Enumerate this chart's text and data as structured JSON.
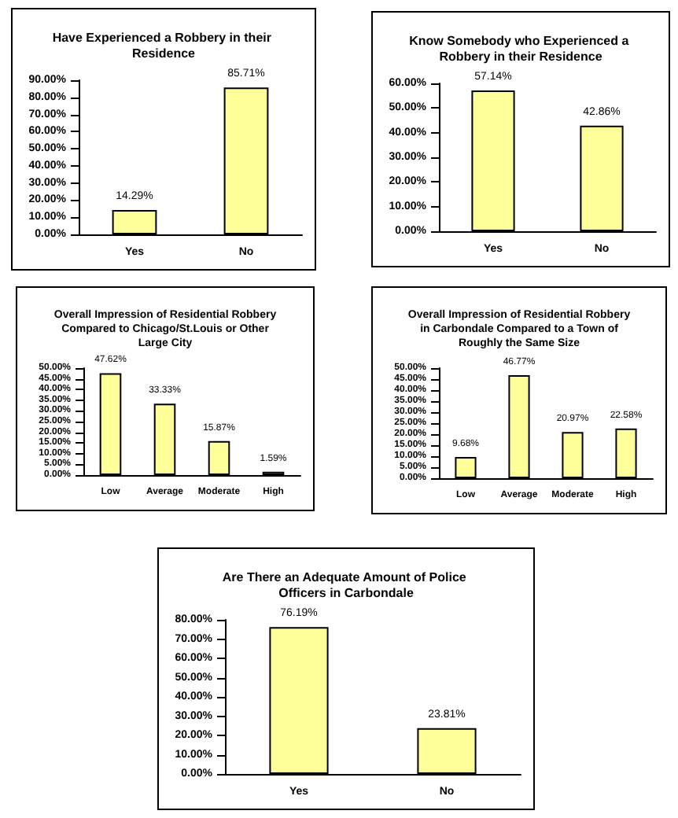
{
  "chart_data": [
    {
      "type": "bar",
      "title": "Have Experienced a Robbery in their Residence",
      "categories": [
        "Yes",
        "No"
      ],
      "values": [
        14.29,
        85.71
      ],
      "color": "#ffff99",
      "value_labels": [
        "14.29%",
        "85.71%"
      ],
      "ylim": [
        0,
        90
      ],
      "yticks": [
        {
          "value": 0,
          "label": "0.00%"
        },
        {
          "value": 10,
          "label": "10.00%"
        },
        {
          "value": 20,
          "label": "20.00%"
        },
        {
          "value": 30,
          "label": "30.00%"
        },
        {
          "value": 40,
          "label": "40.00%"
        },
        {
          "value": 50,
          "label": "50.00%"
        },
        {
          "value": 60,
          "label": "60.00%"
        },
        {
          "value": 70,
          "label": "70.00%"
        },
        {
          "value": 80,
          "label": "80.00%"
        },
        {
          "value": 90,
          "label": "90.00%"
        }
      ],
      "grid": false
    },
    {
      "type": "bar",
      "title": "Know Somebody who Experienced a Robbery in their Residence",
      "categories": [
        "Yes",
        "No"
      ],
      "values": [
        57.14,
        42.86
      ],
      "color": "#ffff99",
      "value_labels": [
        "57.14%",
        "42.86%"
      ],
      "ylim": [
        0,
        60
      ],
      "yticks": [
        {
          "value": 0,
          "label": "0.00%"
        },
        {
          "value": 10,
          "label": "10.00%"
        },
        {
          "value": 20,
          "label": "20.00%"
        },
        {
          "value": 30,
          "label": "30.00%"
        },
        {
          "value": 40,
          "label": "40.00%"
        },
        {
          "value": 50,
          "label": "50.00%"
        },
        {
          "value": 60,
          "label": "60.00%"
        }
      ],
      "grid": false
    },
    {
      "type": "bar",
      "title": "Overall Impression of Residential Robbery Compared to Chicago/St.Louis or Other Large City",
      "categories": [
        "Low",
        "Average",
        "Moderate",
        "High"
      ],
      "values": [
        47.62,
        33.33,
        15.87,
        1.59
      ],
      "color": "#ffff99",
      "value_labels": [
        "47.62%",
        "33.33%",
        "15.87%",
        "1.59%"
      ],
      "ylim": [
        0,
        50
      ],
      "yticks": [
        {
          "value": 0,
          "label": "0.00%"
        },
        {
          "value": 5,
          "label": "5.00%"
        },
        {
          "value": 10,
          "label": "10.00%"
        },
        {
          "value": 15,
          "label": "15.00%"
        },
        {
          "value": 20,
          "label": "20.00%"
        },
        {
          "value": 25,
          "label": "25.00%"
        },
        {
          "value": 30,
          "label": "30.00%"
        },
        {
          "value": 35,
          "label": "35.00%"
        },
        {
          "value": 40,
          "label": "40.00%"
        },
        {
          "value": 45,
          "label": "45.00%"
        },
        {
          "value": 50,
          "label": "50.00%"
        }
      ],
      "grid": false
    },
    {
      "type": "bar",
      "title": "Overall Impression of Residential Robbery in Carbondale Compared to a Town of Roughly the Same Size",
      "categories": [
        "Low",
        "Average",
        "Moderate",
        "High"
      ],
      "values": [
        9.68,
        46.77,
        20.97,
        22.58
      ],
      "color": "#ffff99",
      "value_labels": [
        "9.68%",
        "46.77%",
        "20.97%",
        "22.58%"
      ],
      "ylim": [
        0,
        50
      ],
      "yticks": [
        {
          "value": 0,
          "label": "0.00%"
        },
        {
          "value": 5,
          "label": "5.00%"
        },
        {
          "value": 10,
          "label": "10.00%"
        },
        {
          "value": 15,
          "label": "15.00%"
        },
        {
          "value": 20,
          "label": "20.00%"
        },
        {
          "value": 25,
          "label": "25.00%"
        },
        {
          "value": 30,
          "label": "30.00%"
        },
        {
          "value": 35,
          "label": "35.00%"
        },
        {
          "value": 40,
          "label": "40.00%"
        },
        {
          "value": 45,
          "label": "45.00%"
        },
        {
          "value": 50,
          "label": "50.00%"
        }
      ],
      "grid": false
    },
    {
      "type": "bar",
      "title": "Are There an Adequate Amount of Police Officers in Carbondale",
      "categories": [
        "Yes",
        "No"
      ],
      "values": [
        76.19,
        23.81
      ],
      "color": "#ffff99",
      "value_labels": [
        "76.19%",
        "23.81%"
      ],
      "ylim": [
        0,
        80
      ],
      "yticks": [
        {
          "value": 0,
          "label": "0.00%"
        },
        {
          "value": 10,
          "label": "10.00%"
        },
        {
          "value": 20,
          "label": "20.00%"
        },
        {
          "value": 30,
          "label": "30.00%"
        },
        {
          "value": 40,
          "label": "40.00%"
        },
        {
          "value": 50,
          "label": "50.00%"
        },
        {
          "value": 60,
          "label": "60.00%"
        },
        {
          "value": 70,
          "label": "70.00%"
        },
        {
          "value": 80,
          "label": "80.00%"
        }
      ],
      "grid": false
    }
  ]
}
